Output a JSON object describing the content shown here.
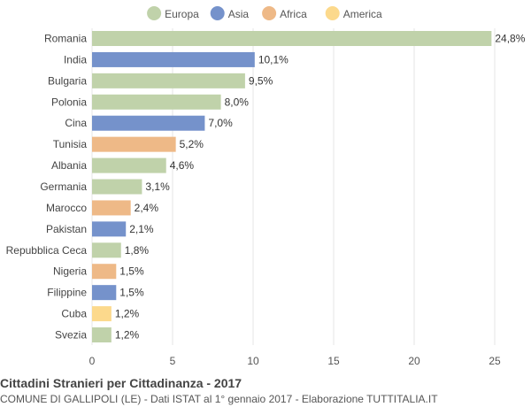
{
  "chart_data": {
    "type": "bar",
    "orientation": "horizontal",
    "title": "Cittadini Stranieri per Cittadinanza - 2017",
    "subtitle": "COMUNE DI GALLIPOLI (LE) - Dati ISTAT al 1° gennaio 2017 - Elaborazione TUTTITALIA.IT",
    "xlim": [
      0,
      25
    ],
    "xticks": [
      "0",
      "5",
      "10",
      "15",
      "20",
      "25"
    ],
    "grid": true,
    "legend_position": "top",
    "legend": [
      {
        "name": "Europa",
        "color": "#c0d2aa"
      },
      {
        "name": "Asia",
        "color": "#7592cb"
      },
      {
        "name": "Africa",
        "color": "#eeb987"
      },
      {
        "name": "America",
        "color": "#fcd98c"
      }
    ],
    "categories": [
      "Romania",
      "India",
      "Bulgaria",
      "Polonia",
      "Cina",
      "Tunisia",
      "Albania",
      "Germania",
      "Marocco",
      "Pakistan",
      "Repubblica Ceca",
      "Nigeria",
      "Filippine",
      "Cuba",
      "Svezia"
    ],
    "values": [
      24.8,
      10.1,
      9.5,
      8.0,
      7.0,
      5.2,
      4.6,
      3.1,
      2.4,
      2.1,
      1.8,
      1.5,
      1.5,
      1.2,
      1.2
    ],
    "value_labels": [
      "24,8%",
      "10,1%",
      "9,5%",
      "8,0%",
      "7,0%",
      "5,2%",
      "4,6%",
      "3,1%",
      "2,4%",
      "2,1%",
      "1,8%",
      "1,5%",
      "1,5%",
      "1,2%",
      "1,2%"
    ],
    "groups": [
      "Europa",
      "Asia",
      "Europa",
      "Europa",
      "Asia",
      "Africa",
      "Europa",
      "Europa",
      "Africa",
      "Asia",
      "Europa",
      "Africa",
      "Asia",
      "America",
      "Europa"
    ]
  }
}
